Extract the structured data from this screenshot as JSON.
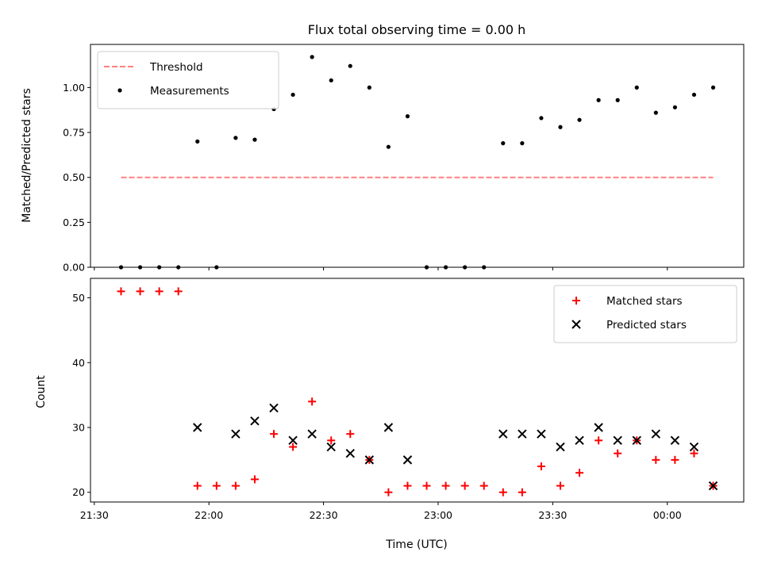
{
  "chart_data": {
    "type": "scatter",
    "title": "Flux total observing time = 0.00 h",
    "xlabel": "Time (UTC)",
    "x_ticks": [
      "21:30",
      "22:00",
      "22:30",
      "23:00",
      "23:30",
      "00:00"
    ],
    "x_range_minutes": [
      -1,
      170
    ],
    "times": [
      "21:37",
      "21:42",
      "21:47",
      "21:52",
      "21:57",
      "22:02",
      "22:07",
      "22:12",
      "22:17",
      "22:22",
      "22:27",
      "22:32",
      "22:37",
      "22:42",
      "22:47",
      "22:52",
      "22:57",
      "23:02",
      "23:07",
      "23:12",
      "23:17",
      "23:22",
      "23:27",
      "23:32",
      "23:37",
      "23:42",
      "23:47",
      "23:52",
      "23:57",
      "00:02",
      "00:07",
      "00:12"
    ],
    "panels": [
      {
        "ylabel": "Matched/Predicted stars",
        "ylim": [
          0,
          1.24
        ],
        "y_ticks": [
          "0.00",
          "0.25",
          "0.50",
          "0.75",
          "1.00"
        ],
        "legend": "top-left",
        "series": [
          {
            "name": "Threshold",
            "kind": "line",
            "style": "dashed",
            "color": "#ff8080",
            "values": [
              0.5,
              0.5
            ]
          },
          {
            "name": "Measurements",
            "kind": "scatter",
            "marker": "dot",
            "color": "#000000",
            "values": [
              0,
              0,
              0,
              0,
              0.7,
              0,
              0.72,
              0.71,
              0.88,
              0.96,
              1.17,
              1.04,
              1.12,
              1.0,
              0.67,
              0.84,
              0,
              0,
              0,
              0,
              0.69,
              0.69,
              0.83,
              0.78,
              0.82,
              0.93,
              0.93,
              1.0,
              0.86,
              0.89,
              0.96,
              1.0
            ]
          }
        ]
      },
      {
        "ylabel": "Count",
        "ylim": [
          18.5,
          53
        ],
        "y_ticks": [
          "20",
          "30",
          "40",
          "50"
        ],
        "legend": "top-right",
        "series": [
          {
            "name": "Matched stars",
            "kind": "scatter",
            "marker": "plus",
            "color": "#ff0000",
            "values": [
              51,
              51,
              51,
              51,
              21,
              21,
              21,
              22,
              29,
              27,
              34,
              28,
              29,
              25,
              20,
              21,
              21,
              21,
              21,
              21,
              20,
              20,
              24,
              21,
              23,
              28,
              26,
              28,
              25,
              25,
              26,
              21
            ]
          },
          {
            "name": "Predicted stars",
            "kind": "scatter",
            "marker": "x",
            "color": "#000000",
            "values": [
              null,
              null,
              null,
              null,
              30,
              null,
              29,
              31,
              33,
              28,
              29,
              27,
              26,
              25,
              30,
              25,
              null,
              null,
              null,
              null,
              29,
              29,
              29,
              27,
              28,
              30,
              28,
              28,
              29,
              28,
              27,
              21
            ]
          }
        ]
      }
    ]
  }
}
